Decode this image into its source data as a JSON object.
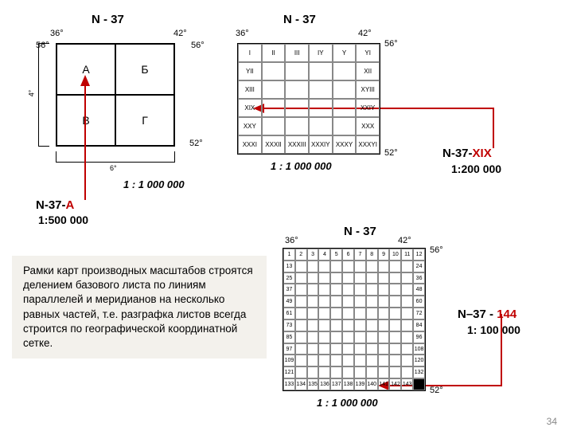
{
  "page_number": "34",
  "diagram1": {
    "title": "N - 37",
    "corner_tl": "36°",
    "corner_tr": "42°",
    "lat_top": "56°",
    "lat_bottom": "52°",
    "h_scale": "6°",
    "v_scale": "4°",
    "cells": [
      "А",
      "Б",
      "В",
      "Г"
    ],
    "caption": "1 : 1 000 000",
    "ref_prefix": "N-37-",
    "ref_suffix": "А",
    "ref_scale": "1:500 000"
  },
  "diagram2": {
    "title": "N - 37",
    "corner_tl": "36°",
    "corner_tr": "42°",
    "lat_top": "56°",
    "lat_bottom": "52°",
    "cells": [
      [
        "I",
        "II",
        "III",
        "IY",
        "Y",
        "YI"
      ],
      [
        "YII",
        "",
        "",
        "",
        "",
        "XII"
      ],
      [
        "XIII",
        "",
        "",
        "",
        "",
        "XYIII"
      ],
      [
        "XIX",
        "",
        "",
        "",
        "",
        "XXIY"
      ],
      [
        "XXY",
        "",
        "",
        "",
        "",
        "XXX"
      ],
      [
        "XXXI",
        "XXXII",
        "XXXIII",
        "XXXIY",
        "XXXY",
        "XXXYI"
      ]
    ],
    "caption": "1 : 1 000 000",
    "ref_prefix": "N-37-",
    "ref_suffix": "XIX",
    "ref_scale": "1:200 000"
  },
  "diagram3": {
    "title": "N - 37",
    "corner_tl": "36°",
    "corner_tr": "42°",
    "lat_top": "56°",
    "lat_bottom": "52°",
    "top_row": [
      "1",
      "2",
      "3",
      "4",
      "5",
      "6",
      "7",
      "8",
      "9",
      "10",
      "11",
      "12"
    ],
    "left_col": [
      "13",
      "25",
      "37",
      "49",
      "61",
      "73",
      "85",
      "97",
      "109",
      "121",
      "133"
    ],
    "right_col": [
      "24",
      "36",
      "48",
      "60",
      "72",
      "84",
      "96",
      "108",
      "120",
      "132",
      "144"
    ],
    "bottom_row": [
      "133",
      "134",
      "135",
      "136",
      "137",
      "138",
      "139",
      "140",
      "141",
      "142",
      "143",
      "144"
    ],
    "caption": "1 : 1 000 000",
    "ref_prefix": "N–37 - ",
    "ref_suffix": "144",
    "ref_scale": "1: 100 000",
    "highlight_index": 143
  },
  "paragraph": "Рамки карт производных масштабов строятся делением базового листа по линиям параллелей и меридианов на несколько равных частей, т.е. разграфка листов всегда строится по географической координатной сетке.",
  "colors": {
    "accent": "#c00000",
    "bg_para": "#f3f1ec"
  }
}
